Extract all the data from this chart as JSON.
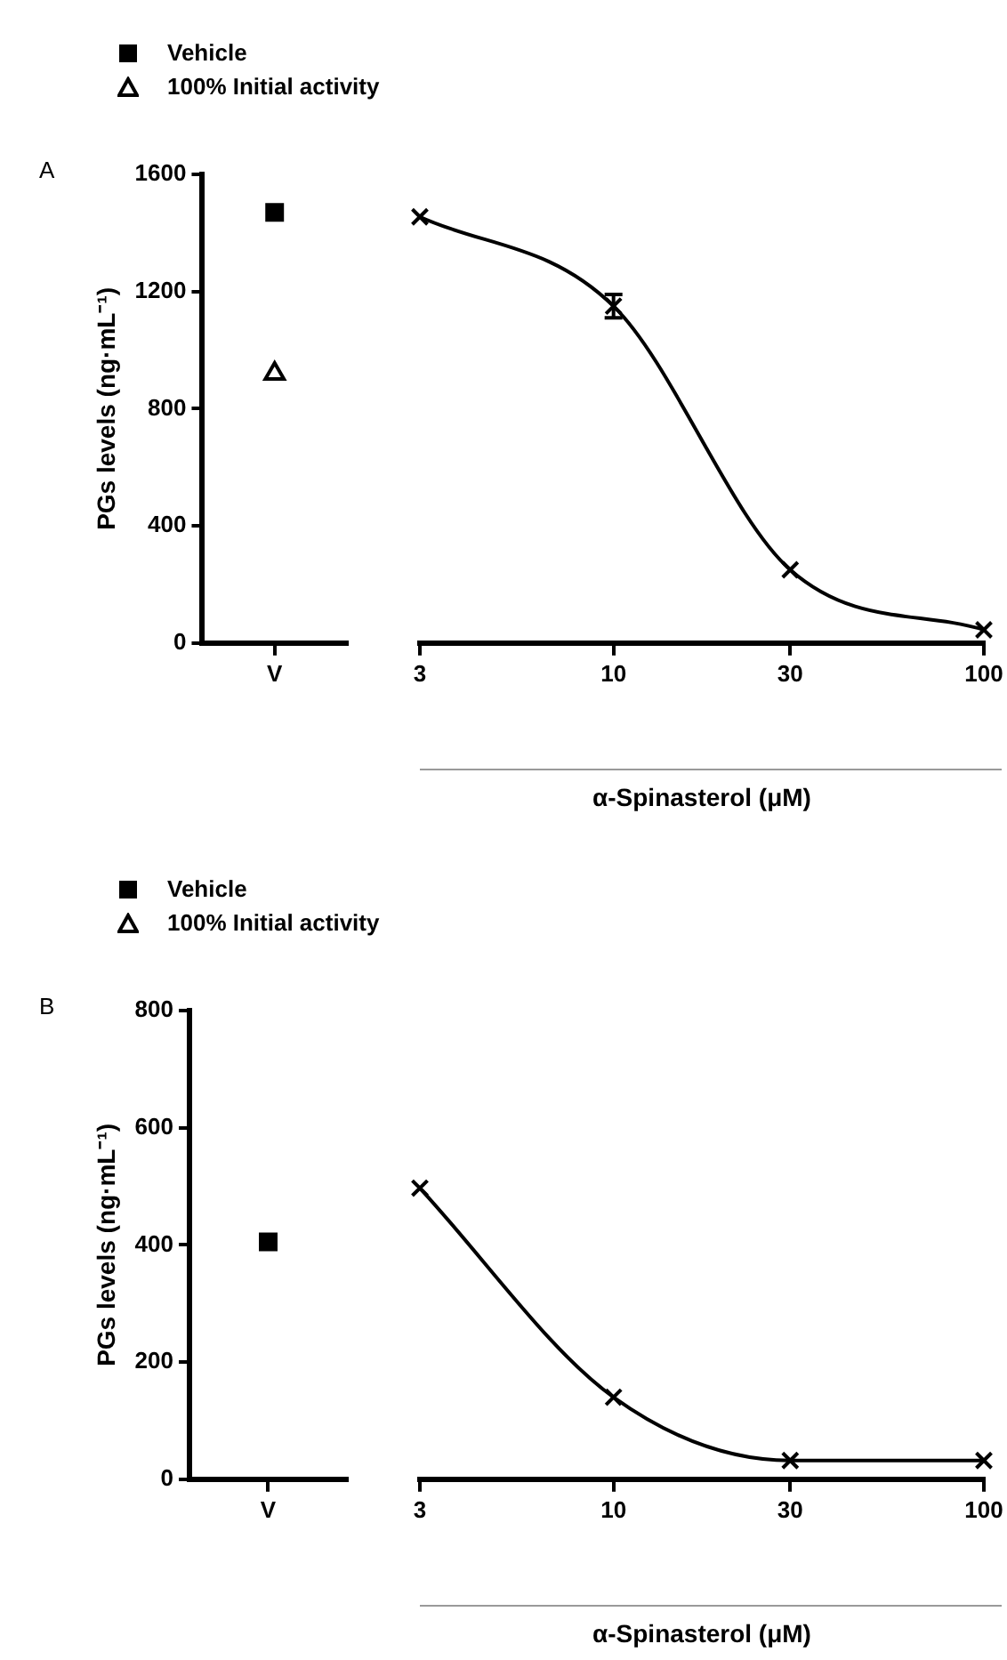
{
  "chart_data": [
    {
      "type": "scatter",
      "title": "A",
      "categories": [
        "V"
      ],
      "ylabel": "PGs levels (ng·mL⁻¹)",
      "ylim": [
        0,
        1600
      ],
      "yticks": [
        0,
        400,
        800,
        1200,
        1600
      ],
      "legend": "top left",
      "series": [
        {
          "name": "Vehicle",
          "color": "#000000",
          "marker": "square",
          "values": [
            1470
          ]
        },
        {
          "name": "100% Initial activity",
          "color": "#000000",
          "marker": "triangle",
          "values": [
            920
          ]
        }
      ]
    },
    {
      "type": "line",
      "x": [
        3,
        10,
        30,
        100
      ],
      "values": [
        1455,
        1150,
        250,
        45
      ],
      "errors": [
        null,
        40,
        null,
        null
      ],
      "color": "#000000",
      "marker": "cross",
      "log": "x",
      "xlim": [
        3,
        100
      ],
      "xticks": [
        3,
        10,
        30,
        100
      ],
      "ylim": [
        0,
        1600
      ],
      "tick_labels": "x",
      "xlabel": "α-Spinasterol (μM)"
    },
    {
      "type": "scatter",
      "title": "B",
      "categories": [
        "V"
      ],
      "ylabel": "PGs levels (ng·mL⁻¹)",
      "ylim": [
        0,
        800
      ],
      "yticks": [
        0,
        200,
        400,
        600,
        800
      ],
      "legend": "top left",
      "series": [
        {
          "name": "Vehicle",
          "color": "#000000",
          "marker": "square",
          "values": [
            405
          ]
        },
        {
          "name": "100% Initial activity",
          "color": "#000000",
          "marker": "triangle",
          "values": [
            null
          ]
        }
      ]
    },
    {
      "type": "line",
      "x": [
        3,
        10,
        30,
        100
      ],
      "values": [
        497,
        140,
        32,
        32
      ],
      "color": "#000000",
      "marker": "cross",
      "log": "x",
      "xlim": [
        3,
        100
      ],
      "xticks": [
        3,
        10,
        30,
        100
      ],
      "ylim": [
        0,
        800
      ],
      "tick_labels": "x",
      "xlabel": "α-Spinasterol (μM)"
    }
  ]
}
